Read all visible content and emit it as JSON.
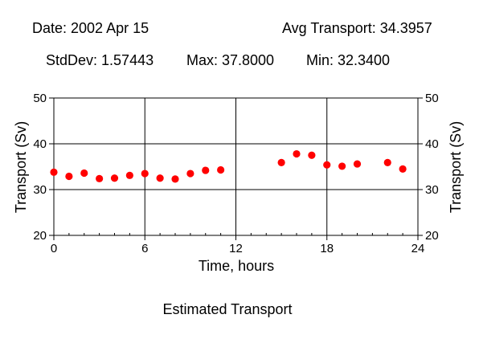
{
  "header": {
    "date": "Date: 2002 Apr 15",
    "avg": "Avg Transport: 34.3957",
    "stddev": "StdDev: 1.57443",
    "max": "Max: 37.8000",
    "min": "Min: 32.3400"
  },
  "caption": "Estimated Transport",
  "colors": {
    "point": "#ff0000",
    "grid": "#000000",
    "background": "#ffffff"
  },
  "chart_data": {
    "type": "scatter",
    "title": "Estimated Transport",
    "xlabel": "Time, hours",
    "ylabel": "Transport (Sv)",
    "ylabel_right": "Transport (Sv)",
    "xlim": [
      0,
      24
    ],
    "ylim": [
      20,
      50
    ],
    "xticks": [
      0,
      6,
      12,
      18,
      24
    ],
    "yticks": [
      20,
      30,
      40,
      50
    ],
    "grid": true,
    "series": [
      {
        "x": [
          0,
          1,
          2,
          3,
          4,
          5,
          6,
          7,
          8,
          9,
          10,
          11,
          15,
          16,
          17,
          18,
          19,
          20,
          22,
          23
        ],
        "y": [
          33.8,
          32.9,
          33.6,
          32.4,
          32.5,
          33.1,
          33.5,
          32.5,
          32.3,
          33.5,
          34.2,
          34.3,
          35.9,
          37.8,
          37.5,
          35.4,
          35.1,
          35.6,
          35.9,
          34.5
        ]
      }
    ]
  }
}
